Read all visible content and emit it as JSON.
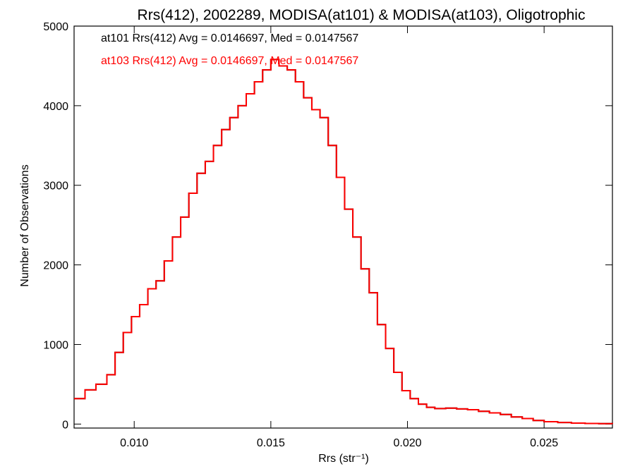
{
  "chart_data": {
    "type": "line",
    "title": "Rrs(412), 2002289, MODISA(at101) & MODISA(at103), Oligotrophic",
    "xlabel": "Rrs (str⁻¹)",
    "ylabel": "Number of Observations",
    "xlim": [
      0.0078,
      0.0275
    ],
    "ylim": [
      -50,
      5000
    ],
    "xticks": [
      0.01,
      0.015,
      0.02,
      0.025
    ],
    "xtick_labels": [
      "0.010",
      "0.015",
      "0.020",
      "0.025"
    ],
    "yticks": [
      0,
      1000,
      2000,
      3000,
      4000,
      5000
    ],
    "ytick_labels": [
      "0",
      "1000",
      "2000",
      "3000",
      "4000",
      "5000"
    ],
    "grid": false,
    "annotations": [
      {
        "text": "at101 Rrs(412) Avg = 0.0146697, Med = 0.0147567",
        "color": "#000000"
      },
      {
        "text": "at103 Rrs(412) Avg = 0.0146697, Med = 0.0147567",
        "color": "#ff0000"
      }
    ],
    "series": [
      {
        "name": "at101",
        "color": "#000000",
        "x": [
          0.0078,
          0.0082,
          0.0086,
          0.009,
          0.0093,
          0.0096,
          0.0099,
          0.0102,
          0.0105,
          0.0108,
          0.0111,
          0.0114,
          0.0117,
          0.012,
          0.0123,
          0.0126,
          0.0129,
          0.0132,
          0.0135,
          0.0138,
          0.0141,
          0.0144,
          0.0147,
          0.015,
          0.0153,
          0.0156,
          0.0159,
          0.0162,
          0.0165,
          0.0168,
          0.0171,
          0.0174,
          0.0177,
          0.018,
          0.0183,
          0.0186,
          0.0189,
          0.0192,
          0.0195,
          0.0198,
          0.0201,
          0.0204,
          0.0207,
          0.021,
          0.0214,
          0.0218,
          0.0222,
          0.0226,
          0.023,
          0.0234,
          0.0238,
          0.0242,
          0.0246,
          0.025,
          0.0255,
          0.026,
          0.0265,
          0.027,
          0.0275
        ],
        "y": [
          320,
          430,
          500,
          620,
          900,
          1150,
          1350,
          1500,
          1700,
          1800,
          2050,
          2350,
          2600,
          2900,
          3150,
          3300,
          3500,
          3700,
          3850,
          4000,
          4150,
          4300,
          4450,
          4580,
          4500,
          4450,
          4300,
          4100,
          3950,
          3850,
          3500,
          3100,
          2700,
          2350,
          1950,
          1650,
          1250,
          950,
          650,
          420,
          320,
          250,
          210,
          195,
          200,
          190,
          180,
          160,
          140,
          120,
          90,
          70,
          45,
          30,
          20,
          12,
          8,
          5,
          3
        ]
      },
      {
        "name": "at103",
        "color": "#ff0000",
        "x": [
          0.0078,
          0.0082,
          0.0086,
          0.009,
          0.0093,
          0.0096,
          0.0099,
          0.0102,
          0.0105,
          0.0108,
          0.0111,
          0.0114,
          0.0117,
          0.012,
          0.0123,
          0.0126,
          0.0129,
          0.0132,
          0.0135,
          0.0138,
          0.0141,
          0.0144,
          0.0147,
          0.015,
          0.0153,
          0.0156,
          0.0159,
          0.0162,
          0.0165,
          0.0168,
          0.0171,
          0.0174,
          0.0177,
          0.018,
          0.0183,
          0.0186,
          0.0189,
          0.0192,
          0.0195,
          0.0198,
          0.0201,
          0.0204,
          0.0207,
          0.021,
          0.0214,
          0.0218,
          0.0222,
          0.0226,
          0.023,
          0.0234,
          0.0238,
          0.0242,
          0.0246,
          0.025,
          0.0255,
          0.026,
          0.0265,
          0.027,
          0.0275
        ],
        "y": [
          320,
          430,
          500,
          620,
          900,
          1150,
          1350,
          1500,
          1700,
          1800,
          2050,
          2350,
          2600,
          2900,
          3150,
          3300,
          3500,
          3700,
          3850,
          4000,
          4150,
          4300,
          4450,
          4580,
          4500,
          4450,
          4300,
          4100,
          3950,
          3850,
          3500,
          3100,
          2700,
          2350,
          1950,
          1650,
          1250,
          950,
          650,
          420,
          320,
          250,
          210,
          195,
          200,
          190,
          180,
          160,
          140,
          120,
          90,
          70,
          45,
          30,
          20,
          12,
          8,
          5,
          3
        ]
      }
    ]
  }
}
